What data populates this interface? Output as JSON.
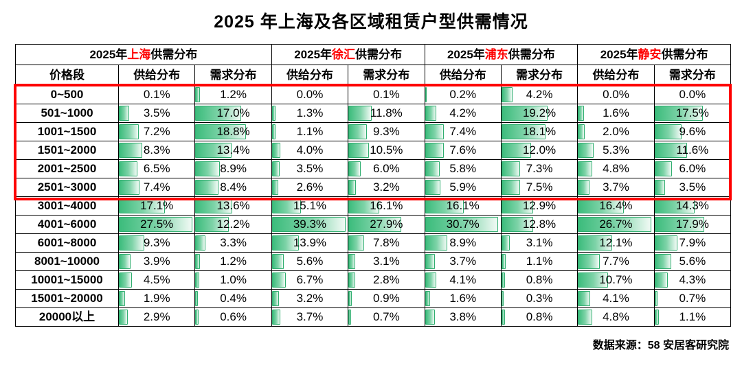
{
  "title": "2025 年上海及各区域租赁户型供需情况",
  "footer": "数据来源：58 安居客研究院",
  "colors": {
    "bar_fill_start": "#3cbc7c",
    "bar_fill_end": "#f1faf5",
    "bar_border": "#2fae6f",
    "highlight_border": "#fe0000",
    "region_name": "#fe0000",
    "table_border": "#000000"
  },
  "table": {
    "price_header": "价格段",
    "supply_label": "供给分布",
    "demand_label": "需求分布",
    "group_prefix": "2025年",
    "group_suffix": "供需分布",
    "regions": [
      "上海",
      "徐汇",
      "浦东",
      "静安"
    ],
    "highlighted_row_range": [
      0,
      5
    ]
  },
  "chart_data": {
    "type": "table",
    "title": "2025 年上海及各区域租赁户型供需情况",
    "unit": "%",
    "source": "数据来源：58 安居客研究院",
    "categories": [
      "0~500",
      "501~1000",
      "1001~1500",
      "1501~2000",
      "2001~2500",
      "2501~3000",
      "3001~4000",
      "4001~6000",
      "6001~8000",
      "8001~10000",
      "10001~15000",
      "15001~20000",
      "20000以上"
    ],
    "series": [
      {
        "region": "上海",
        "name": "上海-供给分布",
        "values": [
          0.1,
          3.5,
          7.2,
          8.3,
          6.5,
          7.4,
          17.1,
          27.5,
          9.3,
          3.9,
          4.5,
          1.9,
          2.9
        ]
      },
      {
        "region": "上海",
        "name": "上海-需求分布",
        "values": [
          1.2,
          17.0,
          18.8,
          13.4,
          8.9,
          8.4,
          13.6,
          12.2,
          3.3,
          1.2,
          1.0,
          0.4,
          0.6
        ]
      },
      {
        "region": "徐汇",
        "name": "徐汇-供给分布",
        "values": [
          0.0,
          1.3,
          1.1,
          4.0,
          3.5,
          2.6,
          15.1,
          39.3,
          13.9,
          5.6,
          6.7,
          3.2,
          3.7
        ]
      },
      {
        "region": "徐汇",
        "name": "徐汇-需求分布",
        "values": [
          0.1,
          11.8,
          9.3,
          10.5,
          6.0,
          3.2,
          16.1,
          27.9,
          7.8,
          3.1,
          2.8,
          0.9,
          0.7
        ]
      },
      {
        "region": "浦东",
        "name": "浦东-供给分布",
        "values": [
          0.2,
          4.2,
          7.4,
          7.6,
          5.8,
          5.9,
          16.1,
          30.7,
          8.9,
          3.7,
          4.1,
          1.6,
          3.8
        ]
      },
      {
        "region": "浦东",
        "name": "浦东-需求分布",
        "values": [
          4.2,
          19.2,
          18.1,
          12.0,
          7.3,
          7.5,
          12.9,
          12.8,
          3.1,
          1.1,
          0.8,
          0.3,
          0.8
        ]
      },
      {
        "region": "静安",
        "name": "静安-供给分布",
        "values": [
          0.0,
          1.6,
          2.0,
          5.3,
          4.8,
          3.7,
          16.4,
          26.7,
          12.1,
          7.7,
          10.7,
          4.1,
          4.8
        ]
      },
      {
        "region": "静安",
        "name": "静安-需求分布",
        "values": [
          0.0,
          17.5,
          9.6,
          11.6,
          6.0,
          3.5,
          14.3,
          17.9,
          7.9,
          5.6,
          4.3,
          0.7,
          1.1
        ]
      }
    ]
  }
}
